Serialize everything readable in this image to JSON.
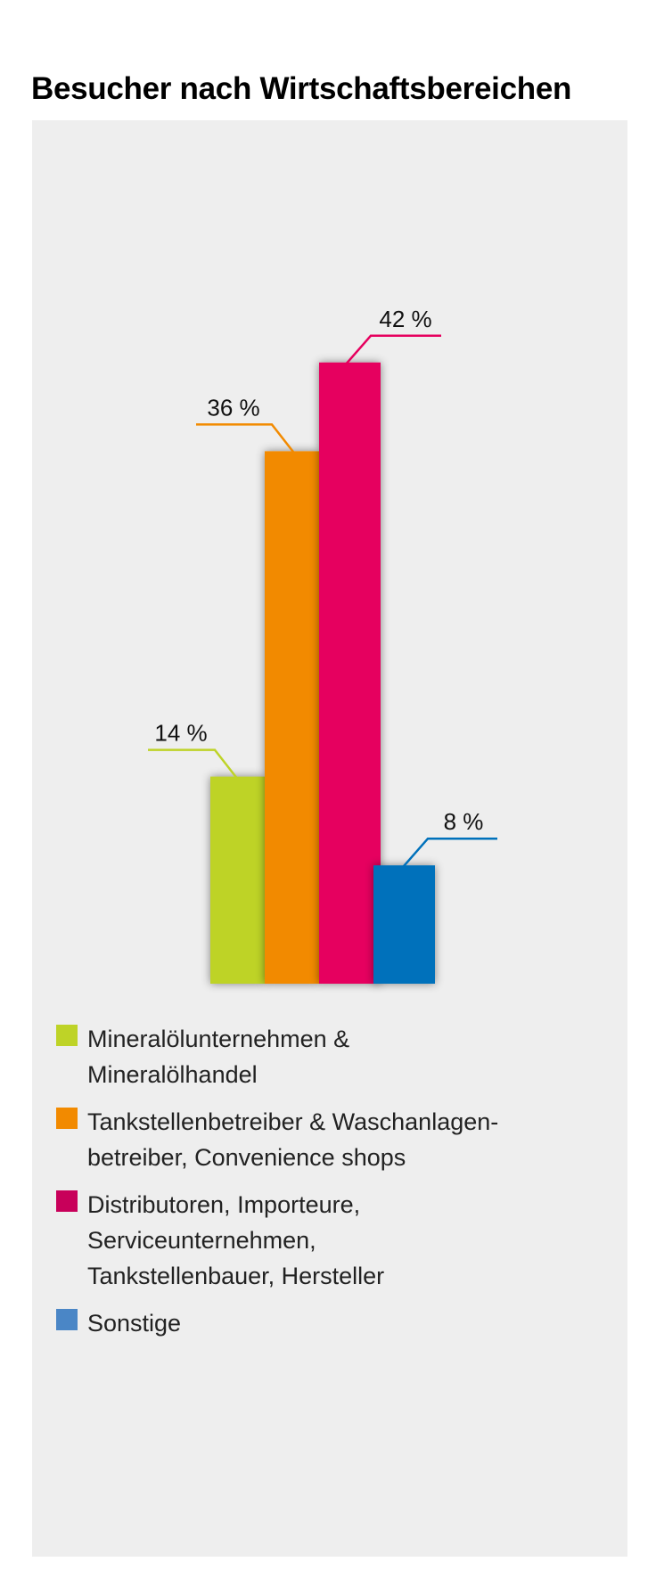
{
  "chart_data": {
    "type": "bar",
    "title": "Besucher nach Wirtschaftsbereichen",
    "categories": [
      "Mineralölunternehmen & Mineralölhandel",
      "Tankstellenbetreiber & Waschanlagen-betreiber, Convenience shops",
      "Distributoren, Importeure, Serviceunternehmen, Tankstellenbauer, Hersteller",
      "Sonstige"
    ],
    "values": [
      14,
      36,
      42,
      8
    ],
    "unit": "%",
    "data_labels": [
      "14 %",
      "36 %",
      "42 %",
      "8 %"
    ],
    "colors": [
      "#bed327",
      "#f28a00",
      "#e6005e",
      "#0071bb"
    ],
    "legend_colors": [
      "#bed327",
      "#f28a00",
      "#c8005a",
      "#4a86c6"
    ],
    "legend_position": "bottom",
    "grid": false,
    "ylim": [
      0,
      42
    ]
  },
  "legend": {
    "items": [
      {
        "label": "Mineralölunternehmen &\nMineralölhandel"
      },
      {
        "label": "Tankstellenbetreiber & Waschanlagen-\nbetreiber, Convenience shops"
      },
      {
        "label": "Distributoren, Importeure,\nServiceunternehmen,\nTankstellenbauer, Hersteller"
      },
      {
        "label": "Sonstige"
      }
    ]
  }
}
